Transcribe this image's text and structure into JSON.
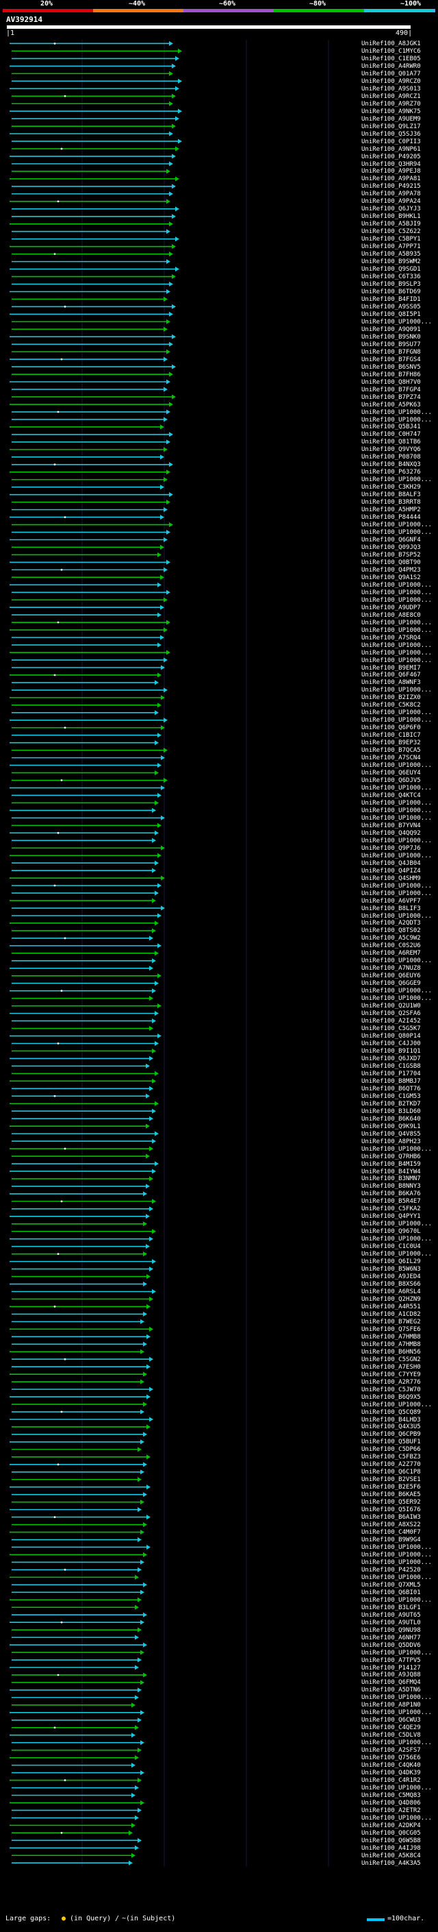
{
  "legend": {
    "ticks": [
      "20%",
      "~40%",
      "~60%",
      "~80%",
      "~100%"
    ],
    "colors": [
      "#e00000",
      "#f07818",
      "#a050d0",
      "#00c000",
      "#18c8e0"
    ]
  },
  "query": {
    "id": "AV392914",
    "start": "1",
    "end": "490"
  },
  "hits": [
    "UniRef100_A8JGK1",
    "UniRef100_C1MYC6",
    "UniRef100_C1EB05",
    "UniRef100_A4RWR0",
    "UniRef100_Q01A77",
    "UniRef100_A9RCZ0",
    "UniRef100_A9S013",
    "UniRef100_A9RCZ1",
    "UniRef100_A9RZ70",
    "UniRef100_A9NK75",
    "UniRef100_A9UEM9",
    "UniRef100_Q9LZ17",
    "UniRef100_Q5SJ36",
    "UniRef100_C0PII3",
    "UniRef100_A9NP61",
    "UniRef100_P49205",
    "UniRef100_Q3HR94",
    "UniRef100_A9PEJ8",
    "UniRef100_A9PA81",
    "UniRef100_P49215",
    "UniRef100_A9PA78",
    "UniRef100_A9PA24",
    "UniRef100_Q6JYJ3",
    "UniRef100_B9HKL1",
    "UniRef100_A5BJI9",
    "UniRef100_C5Z622",
    "UniRef100_C5BPY1",
    "UniRef100_A7PP71",
    "UniRef100_A5B935",
    "UniRef100_B9SWM2",
    "UniRef100_Q9SGD1",
    "UniRef100_C6T336",
    "UniRef100_B9SLP3",
    "UniRef100_B6TD69",
    "UniRef100_B4FID1",
    "UniRef100_A9SS05",
    "UniRef100_Q8I5P1",
    "UniRef100_UP1000...",
    "UniRef100_A9Q091",
    "UniRef100_B9SNK0",
    "UniRef100_B9SU77",
    "UniRef100_B7FGN8",
    "UniRef100_B7FGS4",
    "UniRef100_B6SNV5",
    "UniRef100_B7FH86",
    "UniRef100_Q8H7V0",
    "UniRef100_B7FGP4",
    "UniRef100_B7PZ74",
    "UniRef100_A5PK63",
    "UniRef100_UP1000...",
    "UniRef100_UP1000...",
    "UniRef100_Q5BJ41",
    "UniRef100_C0H747",
    "UniRef100_Q81TB6",
    "UniRef100_Q9VYQ6",
    "UniRef100_P08708",
    "UniRef100_B4NXQ3",
    "UniRef100_P63276",
    "UniRef100_UP1000...",
    "UniRef100_C3KH29",
    "UniRef100_B8ALF3",
    "UniRef100_B3RRT8",
    "UniRef100_A5HMP2",
    "UniRef100_P84444",
    "UniRef100_UP1000...",
    "UniRef100_UP1000...",
    "UniRef100_Q6GNF4",
    "UniRef100_Q09JQ3",
    "UniRef100_B7SP52",
    "UniRef100_Q0BT90",
    "UniRef100_Q4PM23",
    "UniRef100_Q9A1S2",
    "UniRef100_UP1000...",
    "UniRef100_UP1000...",
    "UniRef100_UP1000...",
    "UniRef100_A9UDP7",
    "UniRef100_A8E8C0",
    "UniRef100_UP1000...",
    "UniRef100_UP1000...",
    "UniRef100_A7SRQ4",
    "UniRef100_UP1000...",
    "UniRef100_UP1000...",
    "UniRef100_UP1000...",
    "UniRef100_B9EMI7",
    "UniRef100_Q6F467",
    "UniRef100_A8WNF3",
    "UniRef100_UP1000...",
    "UniRef100_B2IZX0",
    "UniRef100_C5K8C2",
    "UniRef100_UP1000...",
    "UniRef100_UP1000...",
    "UniRef100_Q6P6F0",
    "UniRef100_C1BIC7",
    "UniRef100_B9EP32",
    "UniRef100_B7QCA5",
    "UniRef100_A7SCN4",
    "UniRef100_UP1000...",
    "UniRef100_Q6EUY4",
    "UniRef100_Q6DJV5",
    "UniRef100_UP1000...",
    "UniRef100_Q4KTC4",
    "UniRef100_UP1000...",
    "UniRef100_UP1000...",
    "UniRef100_UP1000...",
    "UniRef100_B7YVN4",
    "UniRef100_Q4QQ92",
    "UniRef100_UP1000...",
    "UniRef100_Q9P7J6",
    "UniRef100_UP1000...",
    "UniRef100_Q4JB04",
    "UniRef100_Q4PIZ4",
    "UniRef100_Q4SHM9",
    "UniRef100_UP1000...",
    "UniRef100_UP1000...",
    "UniRef100_A6VPF7",
    "UniRef100_B8LIF3",
    "UniRef100_UP1000...",
    "UniRef100_A2QDT3",
    "UniRef100_Q8TS02",
    "UniRef100_A5C9W2",
    "UniRef100_C0S2U6",
    "UniRef100_A6REM7",
    "UniRef100_UP1000...",
    "UniRef100_A7NUZ8",
    "UniRef100_Q6EUY6",
    "UniRef100_Q6GGE9",
    "UniRef100_UP1000...",
    "UniRef100_UP1000...",
    "UniRef100_Q2U1W0",
    "UniRef100_Q2SFA6",
    "UniRef100_A2I452",
    "UniRef100_C5G5K7",
    "UniRef100_Q80P14",
    "UniRef100_C4JJ00",
    "UniRef100_B9I1Q1",
    "UniRef100_Q6JXD7",
    "UniRef100_C1GSB8",
    "UniRef100_P17704",
    "UniRef100_B8MBJ7",
    "UniRef100_B6QT76",
    "UniRef100_C1GM53",
    "UniRef100_B2TKD7",
    "UniRef100_B3LD60",
    "UniRef100_B6K640",
    "UniRef100_Q9K9L1",
    "UniRef100_Q4V8S5",
    "UniRef100_A8PH23",
    "UniRef100_UP1000...",
    "UniRef100_Q7RHB6",
    "UniRef100_B4MI59",
    "UniRef100_B4IYW4",
    "UniRef100_B3NMN7",
    "UniRef100_B8NNY3",
    "UniRef100_B6KA76",
    "UniRef100_B5R4E7",
    "UniRef100_C5FKA2",
    "UniRef100_Q4PYY1",
    "UniRef100_UP1000...",
    "UniRef100_Q9670L",
    "UniRef100_UP1000...",
    "UniRef100_C1C0U4",
    "UniRef100_UP1000...",
    "UniRef100_Q6IL29",
    "UniRef100_B5W6N3",
    "UniRef100_A9JED4",
    "UniRef100_B8XS66",
    "UniRef100_A6RSL4",
    "UniRef100_Q2HZN9",
    "UniRef100_A4R551",
    "UniRef100_A1CD82",
    "UniRef100_B7WEG2",
    "UniRef100_Q7SFE6",
    "UniRef100_A7HMB8",
    "UniRef100_A7HMB8",
    "UniRef100_B6HN56",
    "UniRef100_C5SGN2",
    "UniRef100_A7ESH0",
    "UniRef100_C7YYE9",
    "UniRef100_A2R776",
    "UniRef100_C5JW70",
    "UniRef100_B6Q9X5",
    "UniRef100_UP1000...",
    "UniRef100_Q5CQ89",
    "UniRef100_B4LHD3",
    "UniRef100_Q4X3U5",
    "UniRef100_Q6CPB9",
    "UniRef100_Q5BUF1",
    "UniRef100_C5DP66",
    "UniRef100_C5FBZ3",
    "UniRef100_A2Z770",
    "UniRef100_Q6C1P8",
    "UniRef100_B2VSE1",
    "UniRef100_B2E5F6",
    "UniRef100_B6KAE5",
    "UniRef100_Q5ER92",
    "UniRef100_Q5I676",
    "UniRef100_B6AIW3",
    "UniRef100_A8XS22",
    "UniRef100_C4M0F7",
    "UniRef100_B9W9G4",
    "UniRef100_UP1000...",
    "UniRef100_UP1000...",
    "UniRef100_UP1000...",
    "UniRef100_P42520",
    "UniRef100_UP1000...",
    "UniRef100_Q7XML5",
    "UniRef100_Q6BI01",
    "UniRef100_UP1000...",
    "UniRef100_B3LGF1",
    "UniRef100_A9UT65",
    "UniRef100_A9UTL0",
    "UniRef100_Q9NU98",
    "UniRef100_A6NH77",
    "UniRef100_Q5DDV6",
    "UniRef100_UP1000...",
    "UniRef100_A7TPV5",
    "UniRef100_P14127",
    "UniRef100_A9JQ88",
    "UniRef100_Q6FMQ4",
    "UniRef100_A5DTN6",
    "UniRef100_UP1000...",
    "UniRef100_A8P1N0",
    "UniRef100_UP1000...",
    "UniRef100_Q6CWU3",
    "UniRef100_C4QE29",
    "UniRef100_C5DLV8",
    "UniRef100_UP1000...",
    "UniRef100_A2SFS7",
    "UniRef100_Q756E6",
    "UniRef100_C4QK40",
    "UniRef100_Q4DK39",
    "UniRef100_C4R1R2",
    "UniRef100_UP1000...",
    "UniRef100_C5MQ83",
    "UniRef100_Q4D806",
    "UniRef100_A2ETR2",
    "UniRef100_UP1000...",
    "UniRef100_A2DKP4",
    "UniRef100_Q0CG05",
    "UniRef100_Q6W5B8",
    "UniRef100_A4IJ98",
    "UniRef100_A5K8C4",
    "UniRef100_A4K3A5"
  ],
  "footer": {
    "gaps_label": "Large gaps:",
    "in_query": "(in Query)",
    "slash": "/",
    "in_subject": "~(in Subject)",
    "scale_label": "=100char."
  }
}
